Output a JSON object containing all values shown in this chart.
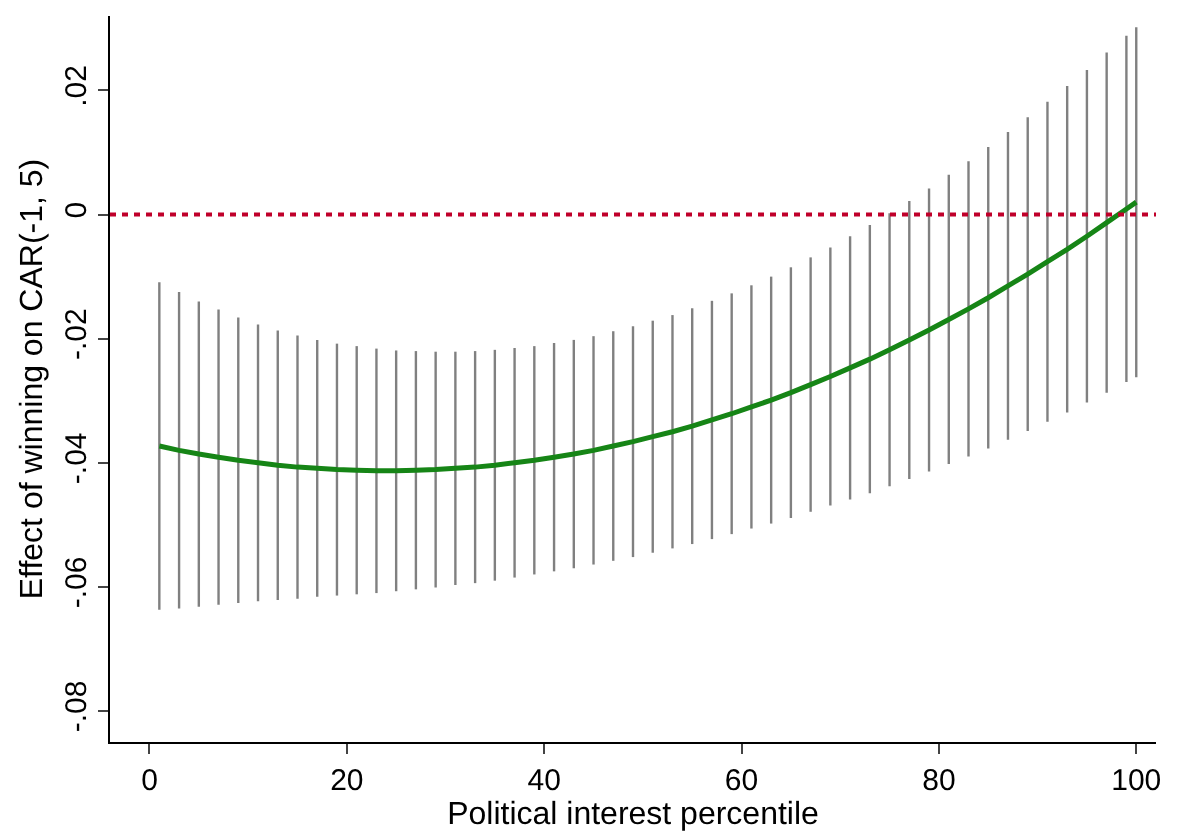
{
  "chart_data": {
    "type": "line",
    "xlabel": "Political interest percentile",
    "ylabel": "Effect of winning on CAR(-1, 5)",
    "x": [
      1,
      3,
      5,
      7,
      9,
      11,
      13,
      15,
      17,
      19,
      21,
      23,
      25,
      27,
      29,
      31,
      33,
      35,
      37,
      39,
      41,
      43,
      45,
      47,
      49,
      51,
      53,
      55,
      57,
      59,
      61,
      63,
      65,
      67,
      69,
      71,
      73,
      75,
      77,
      79,
      81,
      83,
      85,
      87,
      89,
      91,
      93,
      95,
      97,
      99,
      100
    ],
    "series": [
      {
        "color": "#168516",
        "values": [
          -0.0373,
          -0.038,
          -0.0386,
          -0.0391,
          -0.0396,
          -0.04,
          -0.0404,
          -0.0407,
          -0.0409,
          -0.0411,
          -0.0412,
          -0.0413,
          -0.0413,
          -0.0412,
          -0.0411,
          -0.0409,
          -0.0407,
          -0.0404,
          -0.04,
          -0.0396,
          -0.0391,
          -0.0386,
          -0.038,
          -0.0373,
          -0.0366,
          -0.0358,
          -0.035,
          -0.0341,
          -0.0331,
          -0.0321,
          -0.031,
          -0.0299,
          -0.0287,
          -0.0274,
          -0.0261,
          -0.0247,
          -0.0233,
          -0.0218,
          -0.0202,
          -0.0186,
          -0.0169,
          -0.0152,
          -0.0134,
          -0.0115,
          -0.0096,
          -0.0076,
          -0.0056,
          -0.0035,
          -0.0013,
          0.0009,
          0.002
        ],
        "errors": [
          0.0264,
          0.0255,
          0.0246,
          0.0238,
          0.023,
          0.0223,
          0.0217,
          0.0212,
          0.0207,
          0.0203,
          0.02,
          0.0197,
          0.0194,
          0.0192,
          0.019,
          0.0188,
          0.0187,
          0.0186,
          0.0185,
          0.0184,
          0.0184,
          0.0184,
          0.0184,
          0.0185,
          0.0186,
          0.0187,
          0.0188,
          0.019,
          0.0192,
          0.0194,
          0.0196,
          0.0199,
          0.0202,
          0.0205,
          0.0208,
          0.0212,
          0.0216,
          0.022,
          0.0224,
          0.0228,
          0.0233,
          0.0238,
          0.0243,
          0.0248,
          0.0253,
          0.0258,
          0.0263,
          0.0268,
          0.0274,
          0.0279,
          0.0282
        ]
      }
    ],
    "xlim": [
      -4,
      102
    ],
    "xticks": [
      0,
      20,
      40,
      60,
      80,
      100
    ],
    "ylim": [
      -0.085,
      0.032
    ],
    "yticks": [
      {
        "value": -0.08,
        "label": "-.08"
      },
      {
        "value": -0.06,
        "label": "-.06"
      },
      {
        "value": -0.04,
        "label": "-.04"
      },
      {
        "value": -0.02,
        "label": "-.02"
      },
      0,
      {
        "value": 0.02,
        "label": ".02"
      }
    ],
    "ref_lines": [
      {
        "axis": "y",
        "value": 0,
        "color": "#c0002a",
        "line_style": "dotted"
      }
    ],
    "marker": "none",
    "line_style": "solid"
  }
}
